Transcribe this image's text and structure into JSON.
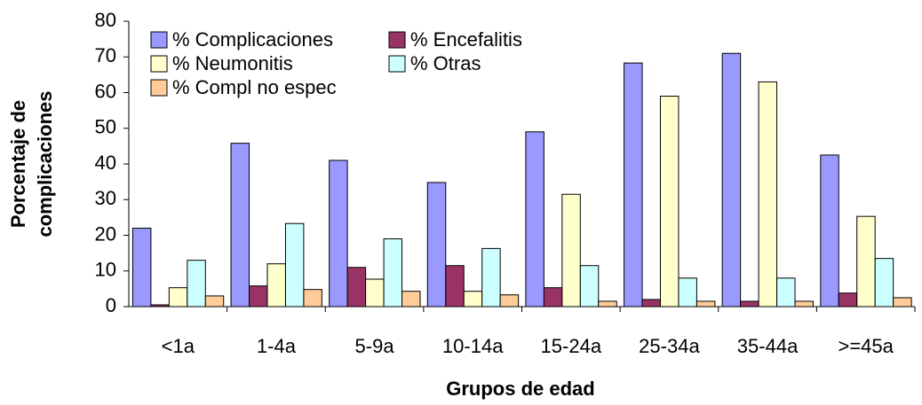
{
  "chart_data": {
    "type": "bar",
    "ylabel": [
      "Porcentaje de",
      "complicaciones"
    ],
    "xlabel": "Grupos de edad",
    "categories": [
      "<1a",
      "1-4a",
      "5-9a",
      "10-14a",
      "15-24a",
      "25-34a",
      "35-44a",
      ">=45a"
    ],
    "series": [
      {
        "name": "% Complicaciones",
        "color": "#9999ff",
        "values": [
          22,
          45.8,
          41,
          34.8,
          49,
          68.3,
          71,
          42.5
        ]
      },
      {
        "name": "% Encefalitis",
        "color": "#993366",
        "values": [
          0.5,
          5.8,
          11,
          11.5,
          5.3,
          2,
          1.5,
          3.8
        ]
      },
      {
        "name": "% Neumonitis",
        "color": "#ffffcc",
        "values": [
          5.3,
          12,
          7.7,
          4.3,
          31.5,
          59,
          63,
          25.3
        ]
      },
      {
        "name": "% Otras",
        "color": "#ccffff",
        "values": [
          13,
          23.3,
          19,
          16.3,
          11.5,
          8,
          8,
          13.5
        ]
      },
      {
        "name": "% Compl no espec",
        "color": "#ffcc99",
        "values": [
          3,
          4.8,
          4.3,
          3.3,
          1.5,
          1.5,
          1.5,
          2.5
        ]
      }
    ],
    "ylim": [
      0,
      80
    ],
    "yticks": [
      0,
      10,
      20,
      30,
      40,
      50,
      60,
      70,
      80
    ],
    "grid": false,
    "legend": "top-left"
  }
}
